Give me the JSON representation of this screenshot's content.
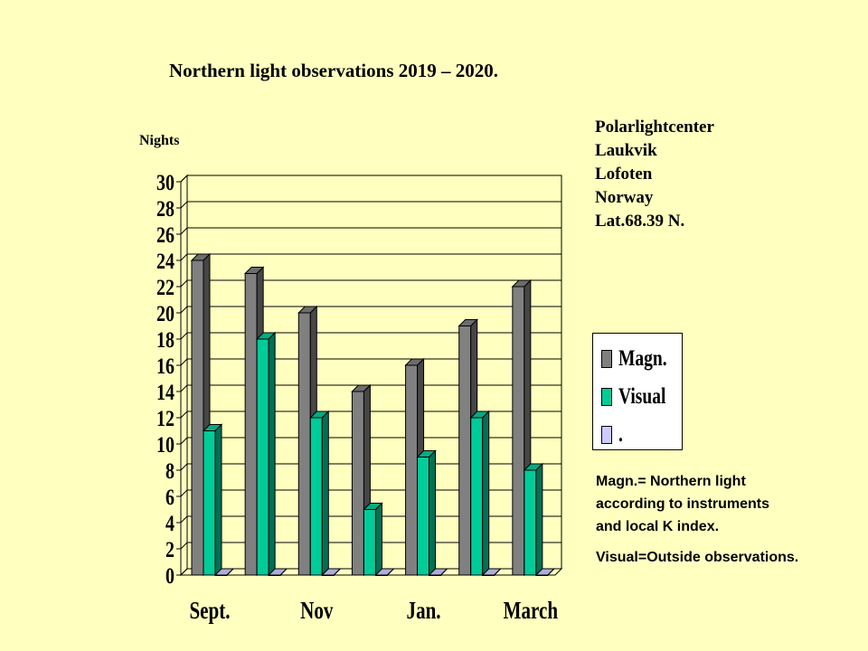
{
  "title": "Northern light observations 2019 – 2020.",
  "location": [
    "Polarlightcenter",
    "Laukvik",
    "Lofoten",
    "Norway",
    "Lat.68.39 N."
  ],
  "notes": [
    "Magn.= Northern  light",
    "according to instruments",
    "and local K index.",
    "Visual=Outside  observations."
  ],
  "colors": {
    "background": "#ffffc0",
    "magn": "#808080",
    "visual": "#00cc99",
    "dot": "#ccccff"
  },
  "chart_data": {
    "type": "bar",
    "title": "Northern light observations 2019 – 2020.",
    "ylabel": "Nights",
    "xlabel": "",
    "ylim": [
      0,
      30
    ],
    "yticks": [
      0,
      2,
      4,
      6,
      8,
      10,
      12,
      14,
      16,
      18,
      20,
      22,
      24,
      26,
      28,
      30
    ],
    "grid": true,
    "legend_position": "right",
    "categories": [
      "Sept.",
      "",
      "Nov",
      "",
      "Jan.",
      "",
      "March"
    ],
    "series": [
      {
        "name": "Magn.",
        "values": [
          24,
          23,
          20,
          14,
          16,
          19,
          22
        ]
      },
      {
        "name": "Visual",
        "values": [
          11,
          18,
          12,
          5,
          9,
          12,
          8
        ]
      },
      {
        "name": ".",
        "values": [
          0,
          0,
          0,
          0,
          0,
          0,
          0
        ]
      }
    ]
  }
}
